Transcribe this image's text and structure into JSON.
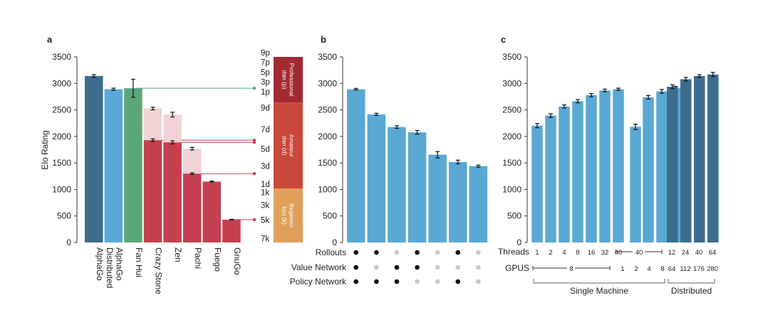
{
  "colors": {
    "alphago_distributed": "#3d6d8e",
    "alphago": "#5aa8d4",
    "fan_hui": "#5aa678",
    "program": "#c44050",
    "program_light": "#f1d3d6",
    "rank_pro": "#a22a33",
    "rank_amateur": "#c8483a",
    "rank_beginner": "#e0a05b",
    "dot_on": "#111111",
    "dot_off": "#c9c9c9"
  },
  "chart_data": [
    {
      "type": "bar",
      "panel": "a",
      "ylabel": "Elo Rating",
      "ylim": [
        0,
        3500
      ],
      "yticks": [
        "0",
        "500",
        "1000",
        "1500",
        "2000",
        "2500",
        "3000",
        "3500"
      ],
      "categories": [
        "AlphaGo\nDistributed",
        "AlphaGo",
        "Fan Hui",
        "Crazy Stone",
        "Zen",
        "Pachi",
        "Fuego",
        "GnuGo"
      ],
      "values": [
        3140,
        2890,
        2908,
        1929,
        1888,
        1298,
        1148,
        431
      ],
      "errors": [
        25,
        20,
        170,
        25,
        30,
        15,
        10,
        5
      ],
      "color_keys": [
        "alphago_distributed",
        "alphago",
        "fan_hui",
        "program",
        "program",
        "program",
        "program",
        "program"
      ],
      "light_values": [
        null,
        null,
        null,
        2526,
        2412,
        1768,
        null,
        null
      ],
      "light_errors": [
        null,
        null,
        null,
        25,
        45,
        25,
        null,
        null
      ],
      "rank_ticks": [
        {
          "label": "9p",
          "value": 3580
        },
        {
          "label": "7p",
          "value": 3400
        },
        {
          "label": "5p",
          "value": 3215
        },
        {
          "label": "3p",
          "value": 3030
        },
        {
          "label": "1p",
          "value": 2840
        },
        {
          "label": "9d",
          "value": 2540
        },
        {
          "label": "7d",
          "value": 2135
        },
        {
          "label": "5d",
          "value": 1765
        },
        {
          "label": "3d",
          "value": 1440
        },
        {
          "label": "1d",
          "value": 1100
        },
        {
          "label": "1k",
          "value": 945
        },
        {
          "label": "3k",
          "value": 705
        },
        {
          "label": "5k",
          "value": 425
        },
        {
          "label": "7k",
          "value": 75
        }
      ],
      "rank_bands": [
        {
          "label": "Professional dan (p)",
          "from": 2640,
          "to": 3500,
          "color_key": "rank_pro"
        },
        {
          "label": "Amateur dan (d)",
          "from": 1015,
          "to": 2640,
          "color_key": "rank_amateur"
        },
        {
          "label": "Beginner kyu (k)",
          "from": 0,
          "to": 1015,
          "color_key": "rank_beginner"
        }
      ]
    },
    {
      "type": "bar",
      "panel": "b",
      "ylim": [
        0,
        3500
      ],
      "yticks": [
        "0",
        "500",
        "1000",
        "1500",
        "2000",
        "2500",
        "3000",
        "3500"
      ],
      "values": [
        2890,
        2416,
        2177,
        2077,
        1655,
        1517,
        1440
      ],
      "errors": [
        15,
        20,
        25,
        35,
        60,
        35,
        20
      ],
      "row_labels": [
        "Rollouts",
        "Value Network",
        "Policy Network"
      ],
      "matrix": [
        [
          true,
          true,
          false,
          true,
          false,
          true,
          false
        ],
        [
          true,
          false,
          true,
          true,
          false,
          false,
          false
        ],
        [
          true,
          true,
          true,
          false,
          false,
          true,
          false
        ]
      ]
    },
    {
      "type": "bar",
      "panel": "c",
      "ylim": [
        0,
        3500
      ],
      "yticks": [
        "0",
        "500",
        "1000",
        "1500",
        "2000",
        "2500",
        "3000",
        "3500"
      ],
      "single_machine": {
        "values": [
          2203,
          2393,
          2564,
          2665,
          2778,
          2867,
          2890,
          2181,
          2738,
          2850,
          2913
        ],
        "errors": [
          40,
          35,
          30,
          30,
          30,
          25,
          20,
          50,
          35,
          35,
          30
        ],
        "threads": [
          "1",
          "2",
          "4",
          "8",
          "16",
          "32",
          "40",
          "40"
        ],
        "gpus": [
          "8",
          "1",
          "2",
          "4",
          "8"
        ]
      },
      "distributed": {
        "values": [
          2937,
          3079,
          3140,
          3168
        ],
        "errors": [
          35,
          35,
          25,
          40
        ],
        "threads": [
          "12",
          "24",
          "40",
          "64"
        ],
        "gpus": [
          "64",
          "112",
          "176",
          "280"
        ]
      },
      "row_labels": [
        "Threads",
        "GPUS"
      ],
      "group_labels": [
        "Single Machine",
        "Distributed"
      ]
    }
  ],
  "panel_labels": [
    "a",
    "b",
    "c"
  ]
}
